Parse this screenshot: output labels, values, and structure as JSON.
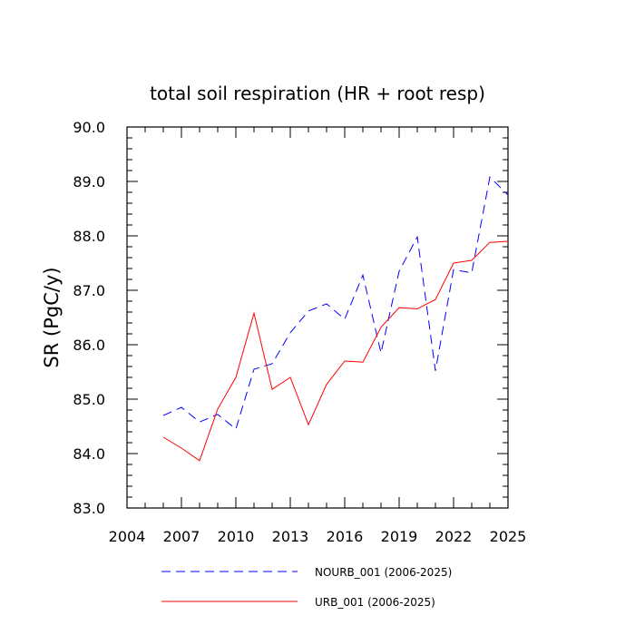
{
  "chart_data": {
    "type": "line",
    "title": "total soil respiration (HR + root resp)",
    "xlabel": "",
    "ylabel": "SR  (PgC/y)",
    "xlim": [
      2004,
      2025
    ],
    "ylim": [
      83.0,
      90.0
    ],
    "x_ticks": [
      2004,
      2007,
      2010,
      2013,
      2016,
      2019,
      2022,
      2025
    ],
    "x_tick_labels": [
      "2004",
      "2007",
      "2010",
      "2013",
      "2016",
      "2019",
      "2022",
      "2025"
    ],
    "y_ticks": [
      83.0,
      84.0,
      85.0,
      86.0,
      87.0,
      88.0,
      89.0,
      90.0
    ],
    "y_tick_labels": [
      "83.0",
      "84.0",
      "85.0",
      "86.0",
      "87.0",
      "88.0",
      "89.0",
      "90.0"
    ],
    "grid": false,
    "legend_position": "bottom",
    "x": [
      2006,
      2007,
      2008,
      2009,
      2010,
      2011,
      2012,
      2013,
      2014,
      2015,
      2016,
      2017,
      2018,
      2019,
      2020,
      2021,
      2022,
      2023,
      2024,
      2025
    ],
    "series": [
      {
        "name": "NOURB_001 (2006-2025)",
        "color": "#0000ff",
        "style": "dashed",
        "values": [
          84.7,
          84.85,
          84.58,
          84.72,
          84.45,
          85.55,
          85.65,
          86.22,
          86.62,
          86.75,
          86.47,
          87.28,
          85.85,
          87.35,
          87.98,
          85.52,
          87.38,
          87.32,
          89.08,
          88.75
        ]
      },
      {
        "name": "URB_001 (2006-2025)",
        "color": "#ff0000",
        "style": "solid",
        "values": [
          84.3,
          84.1,
          83.87,
          84.82,
          85.4,
          86.58,
          85.18,
          85.4,
          84.53,
          85.27,
          85.7,
          85.68,
          86.32,
          86.68,
          86.66,
          86.83,
          87.5,
          87.55,
          87.88,
          87.9
        ]
      }
    ]
  }
}
